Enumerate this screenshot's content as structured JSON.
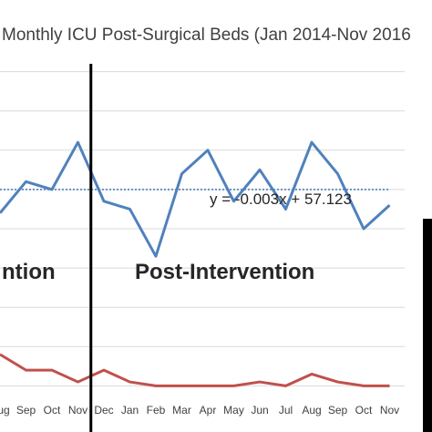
{
  "chart_data": {
    "type": "line",
    "title": "Monthly ICU Post-Surgical Beds (Jan 2014-Nov 2016",
    "categories": [
      "Aug",
      "Sep",
      "Oct",
      "Nov",
      "Dec",
      "Jan",
      "Feb",
      "Mar",
      "Apr",
      "May",
      "Jun",
      "Jul",
      "Aug",
      "Sep",
      "Oct",
      "Nov"
    ],
    "series": [
      {
        "values": [
          44,
          52,
          50,
          62,
          47,
          45,
          33,
          54,
          60,
          47,
          55,
          45,
          62,
          54,
          40,
          46
        ],
        "color": "#4f81bd"
      },
      {
        "values": [
          8,
          4,
          4,
          1,
          4,
          1,
          0,
          0,
          0,
          0,
          1,
          0,
          3,
          1,
          0,
          0
        ],
        "color": "#c0504d"
      }
    ],
    "trend": {
      "equation": "y = -0.003x + 57.123",
      "value": 50,
      "color": "#4f81bd",
      "style": "dotted"
    },
    "intervention_after": "Nov",
    "phase_labels": [
      "ntion",
      "Post-Intervention"
    ],
    "ylim": [
      -2,
      82
    ],
    "grid": true
  }
}
